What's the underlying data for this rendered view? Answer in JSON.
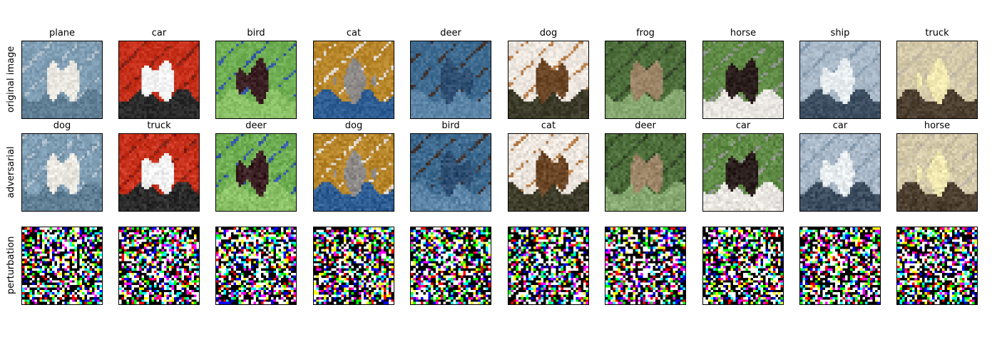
{
  "row_labels": [
    "original image",
    "adversarial",
    "perturbation"
  ],
  "columns": [
    {
      "original": "plane",
      "adversarial": "dog",
      "orig_palette": [
        "#7f9db3",
        "#e9e7df",
        "#5f7e94",
        "#aab9c4"
      ],
      "subject": "plane"
    },
    {
      "original": "car",
      "adversarial": "truck",
      "orig_palette": [
        "#c7301a",
        "#f2f2f2",
        "#2a2a2a",
        "#7a1a10"
      ],
      "subject": "car"
    },
    {
      "original": "bird",
      "adversarial": "deer",
      "orig_palette": [
        "#6fae52",
        "#3a1f22",
        "#8ac066",
        "#2b4fa2"
      ],
      "subject": "bird"
    },
    {
      "original": "cat",
      "adversarial": "dog",
      "orig_palette": [
        "#b8862a",
        "#8d8a88",
        "#2e5d94",
        "#d7d1c9"
      ],
      "subject": "cat"
    },
    {
      "original": "deer",
      "adversarial": "bird",
      "orig_palette": [
        "#3e6a8f",
        "#2d4e70",
        "#5b84a6",
        "#3a2b26"
      ],
      "subject": "deer"
    },
    {
      "original": "dog",
      "adversarial": "cat",
      "orig_palette": [
        "#ece6df",
        "#6b4626",
        "#3c3a28",
        "#b07540"
      ],
      "subject": "dog"
    },
    {
      "original": "frog",
      "adversarial": "deer",
      "orig_palette": [
        "#4d6e3b",
        "#9b8566",
        "#86a870",
        "#2d3b22"
      ],
      "subject": "frog"
    },
    {
      "original": "horse",
      "adversarial": "car",
      "orig_palette": [
        "#5f8a45",
        "#2a1e1c",
        "#e9e6e2",
        "#8c8f8a"
      ],
      "subject": "horse"
    },
    {
      "original": "ship",
      "adversarial": "car",
      "orig_palette": [
        "#a9b9c8",
        "#e7ecef",
        "#3c4e60",
        "#7d93a7"
      ],
      "subject": "ship"
    },
    {
      "original": "truck",
      "adversarial": "horse",
      "orig_palette": [
        "#d4c9a8",
        "#efe6b0",
        "#4c3f30",
        "#b9b0a2"
      ],
      "subject": "truck"
    }
  ]
}
